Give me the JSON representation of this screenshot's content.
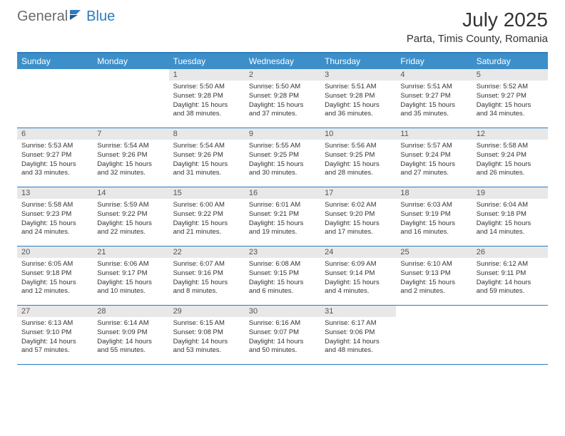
{
  "logo": {
    "text1": "General",
    "text2": "Blue"
  },
  "title": "July 2025",
  "location": "Parta, Timis County, Romania",
  "colors": {
    "header_bg": "#3d8fc9",
    "border": "#2b7bbf",
    "daynum_bg": "#e8e8e8",
    "logo_gray": "#6b6b6b",
    "logo_blue": "#2b7bbf"
  },
  "day_headers": [
    "Sunday",
    "Monday",
    "Tuesday",
    "Wednesday",
    "Thursday",
    "Friday",
    "Saturday"
  ],
  "weeks": [
    [
      null,
      null,
      {
        "n": "1",
        "sr": "5:50 AM",
        "ss": "9:28 PM",
        "dl": "15 hours and 38 minutes."
      },
      {
        "n": "2",
        "sr": "5:50 AM",
        "ss": "9:28 PM",
        "dl": "15 hours and 37 minutes."
      },
      {
        "n": "3",
        "sr": "5:51 AM",
        "ss": "9:28 PM",
        "dl": "15 hours and 36 minutes."
      },
      {
        "n": "4",
        "sr": "5:51 AM",
        "ss": "9:27 PM",
        "dl": "15 hours and 35 minutes."
      },
      {
        "n": "5",
        "sr": "5:52 AM",
        "ss": "9:27 PM",
        "dl": "15 hours and 34 minutes."
      }
    ],
    [
      {
        "n": "6",
        "sr": "5:53 AM",
        "ss": "9:27 PM",
        "dl": "15 hours and 33 minutes."
      },
      {
        "n": "7",
        "sr": "5:54 AM",
        "ss": "9:26 PM",
        "dl": "15 hours and 32 minutes."
      },
      {
        "n": "8",
        "sr": "5:54 AM",
        "ss": "9:26 PM",
        "dl": "15 hours and 31 minutes."
      },
      {
        "n": "9",
        "sr": "5:55 AM",
        "ss": "9:25 PM",
        "dl": "15 hours and 30 minutes."
      },
      {
        "n": "10",
        "sr": "5:56 AM",
        "ss": "9:25 PM",
        "dl": "15 hours and 28 minutes."
      },
      {
        "n": "11",
        "sr": "5:57 AM",
        "ss": "9:24 PM",
        "dl": "15 hours and 27 minutes."
      },
      {
        "n": "12",
        "sr": "5:58 AM",
        "ss": "9:24 PM",
        "dl": "15 hours and 26 minutes."
      }
    ],
    [
      {
        "n": "13",
        "sr": "5:58 AM",
        "ss": "9:23 PM",
        "dl": "15 hours and 24 minutes."
      },
      {
        "n": "14",
        "sr": "5:59 AM",
        "ss": "9:22 PM",
        "dl": "15 hours and 22 minutes."
      },
      {
        "n": "15",
        "sr": "6:00 AM",
        "ss": "9:22 PM",
        "dl": "15 hours and 21 minutes."
      },
      {
        "n": "16",
        "sr": "6:01 AM",
        "ss": "9:21 PM",
        "dl": "15 hours and 19 minutes."
      },
      {
        "n": "17",
        "sr": "6:02 AM",
        "ss": "9:20 PM",
        "dl": "15 hours and 17 minutes."
      },
      {
        "n": "18",
        "sr": "6:03 AM",
        "ss": "9:19 PM",
        "dl": "15 hours and 16 minutes."
      },
      {
        "n": "19",
        "sr": "6:04 AM",
        "ss": "9:18 PM",
        "dl": "15 hours and 14 minutes."
      }
    ],
    [
      {
        "n": "20",
        "sr": "6:05 AM",
        "ss": "9:18 PM",
        "dl": "15 hours and 12 minutes."
      },
      {
        "n": "21",
        "sr": "6:06 AM",
        "ss": "9:17 PM",
        "dl": "15 hours and 10 minutes."
      },
      {
        "n": "22",
        "sr": "6:07 AM",
        "ss": "9:16 PM",
        "dl": "15 hours and 8 minutes."
      },
      {
        "n": "23",
        "sr": "6:08 AM",
        "ss": "9:15 PM",
        "dl": "15 hours and 6 minutes."
      },
      {
        "n": "24",
        "sr": "6:09 AM",
        "ss": "9:14 PM",
        "dl": "15 hours and 4 minutes."
      },
      {
        "n": "25",
        "sr": "6:10 AM",
        "ss": "9:13 PM",
        "dl": "15 hours and 2 minutes."
      },
      {
        "n": "26",
        "sr": "6:12 AM",
        "ss": "9:11 PM",
        "dl": "14 hours and 59 minutes."
      }
    ],
    [
      {
        "n": "27",
        "sr": "6:13 AM",
        "ss": "9:10 PM",
        "dl": "14 hours and 57 minutes."
      },
      {
        "n": "28",
        "sr": "6:14 AM",
        "ss": "9:09 PM",
        "dl": "14 hours and 55 minutes."
      },
      {
        "n": "29",
        "sr": "6:15 AM",
        "ss": "9:08 PM",
        "dl": "14 hours and 53 minutes."
      },
      {
        "n": "30",
        "sr": "6:16 AM",
        "ss": "9:07 PM",
        "dl": "14 hours and 50 minutes."
      },
      {
        "n": "31",
        "sr": "6:17 AM",
        "ss": "9:06 PM",
        "dl": "14 hours and 48 minutes."
      },
      null,
      null
    ]
  ],
  "labels": {
    "sunrise": "Sunrise:",
    "sunset": "Sunset:",
    "daylight": "Daylight:"
  }
}
